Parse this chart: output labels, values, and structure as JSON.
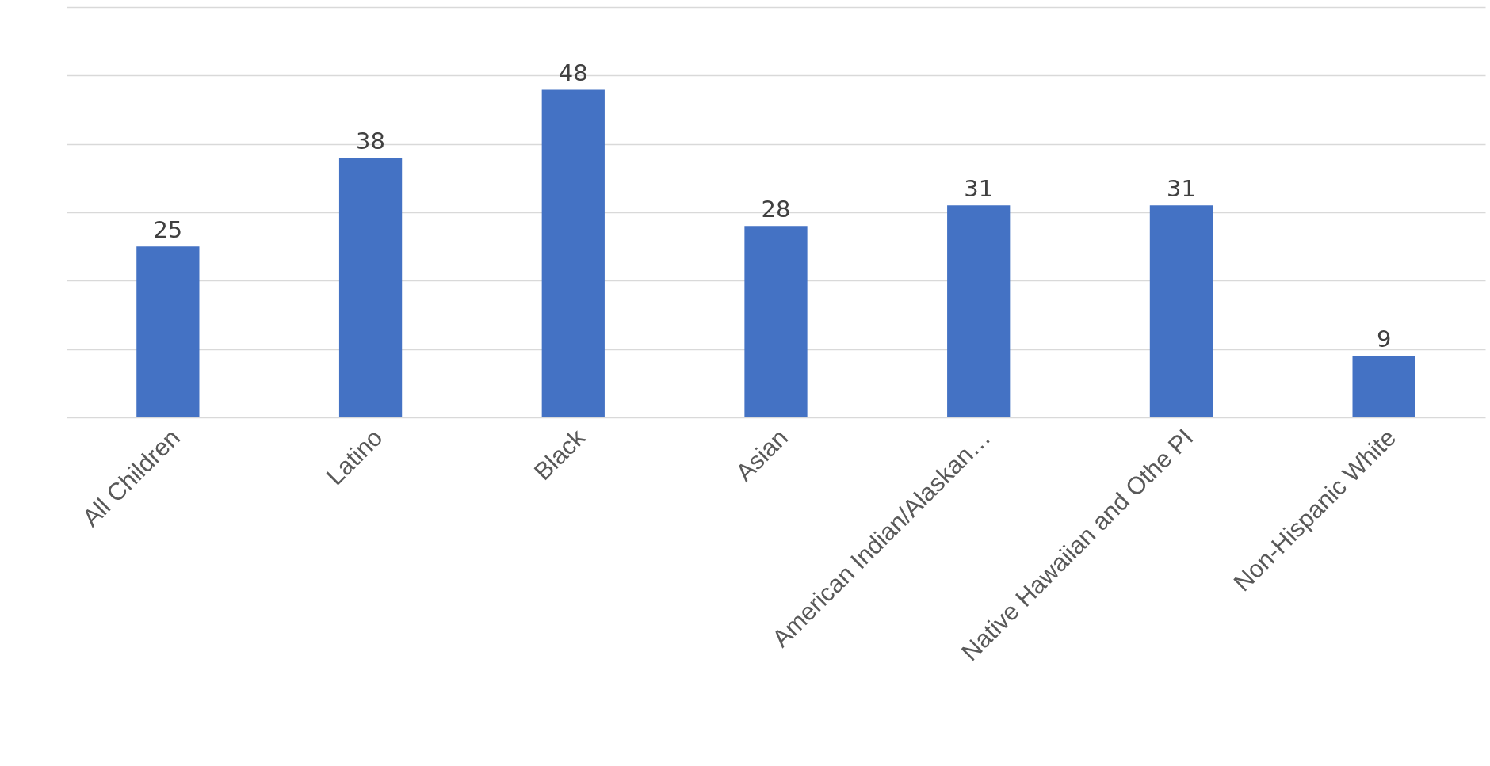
{
  "chart_data": {
    "type": "bar",
    "categories": [
      "All Children",
      "Latino",
      "Black",
      "Asian",
      "American Indian/Alaskan…",
      "Native Hawaiian and Othe PI",
      "Non-Hispanic White"
    ],
    "values": [
      25,
      38,
      48,
      28,
      31,
      31,
      9
    ],
    "color": "#4472c4",
    "ylim": [
      0,
      60
    ],
    "yticks": [
      {
        "value": 0,
        "label": null
      },
      {
        "value": 10,
        "label": null
      },
      {
        "value": 20,
        "label": null
      },
      {
        "value": 30,
        "label": null
      },
      {
        "value": 40,
        "label": null
      },
      {
        "value": 50,
        "label": null
      },
      {
        "value": 60,
        "label": null
      }
    ],
    "grid": "y",
    "tick_labels": "x",
    "data_labels": true
  }
}
